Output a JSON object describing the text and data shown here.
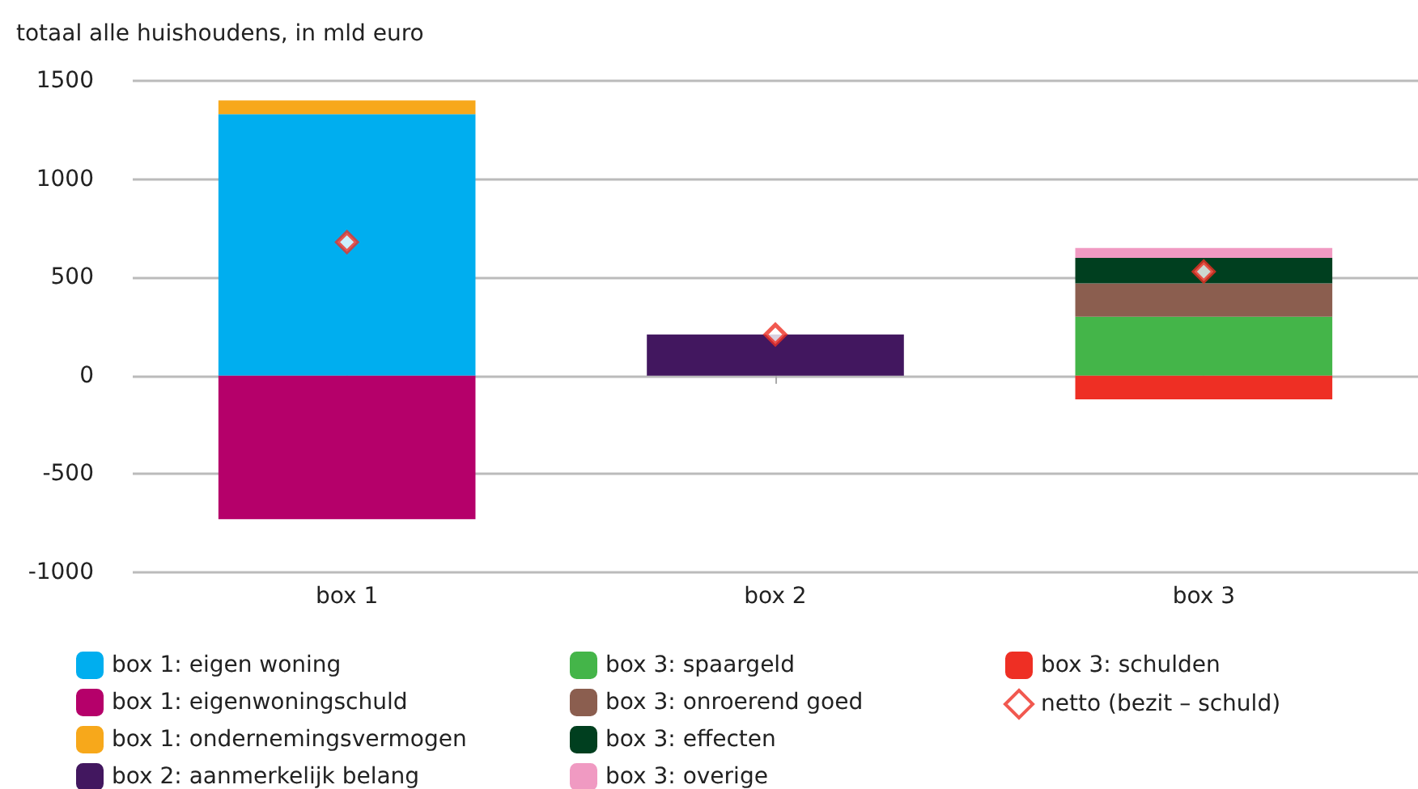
{
  "chart_data": {
    "type": "bar",
    "stacked": true,
    "ylabel": "totaal alle huishoudens, in mld euro",
    "categories": [
      "box 1",
      "box 2",
      "box 3"
    ],
    "series": [
      {
        "name": "box 1: eigen woning",
        "color": "#00aeef",
        "values": [
          1330,
          null,
          null
        ]
      },
      {
        "name": "box 1: eigenwoningschuld",
        "color": "#b5006a",
        "values": [
          -730,
          null,
          null
        ]
      },
      {
        "name": "box 1: ondernemingsvermogen",
        "color": "#f7a81b",
        "values": [
          70,
          null,
          null
        ]
      },
      {
        "name": "box 2: aanmerkelijk belang",
        "color": "#42175f",
        "values": [
          null,
          210,
          null
        ]
      },
      {
        "name": "box 3: spaargeld",
        "color": "#44b549",
        "values": [
          null,
          null,
          300
        ]
      },
      {
        "name": "box 3: onroerend goed",
        "color": "#8b5e4f",
        "values": [
          null,
          null,
          170
        ]
      },
      {
        "name": "box 3: effecten",
        "color": "#003f1f",
        "values": [
          null,
          null,
          130
        ]
      },
      {
        "name": "box 3: overige",
        "color": "#f09ac2",
        "values": [
          null,
          null,
          50
        ]
      },
      {
        "name": "box 3: schulden",
        "color": "#ee2f24",
        "values": [
          null,
          null,
          -120
        ]
      },
      {
        "name": "netto (bezit – schuld)",
        "type": "scatter",
        "marker": "diamond",
        "color": "#ee2f24",
        "x": [
          "box 1",
          "box 2",
          "box 3"
        ],
        "values": [
          680,
          210,
          530
        ]
      }
    ],
    "ylim": [
      -1000,
      1500
    ],
    "yticks": [
      -1000,
      -500,
      0,
      500,
      1000,
      1500
    ],
    "grid": "y",
    "legend": "bottom"
  }
}
